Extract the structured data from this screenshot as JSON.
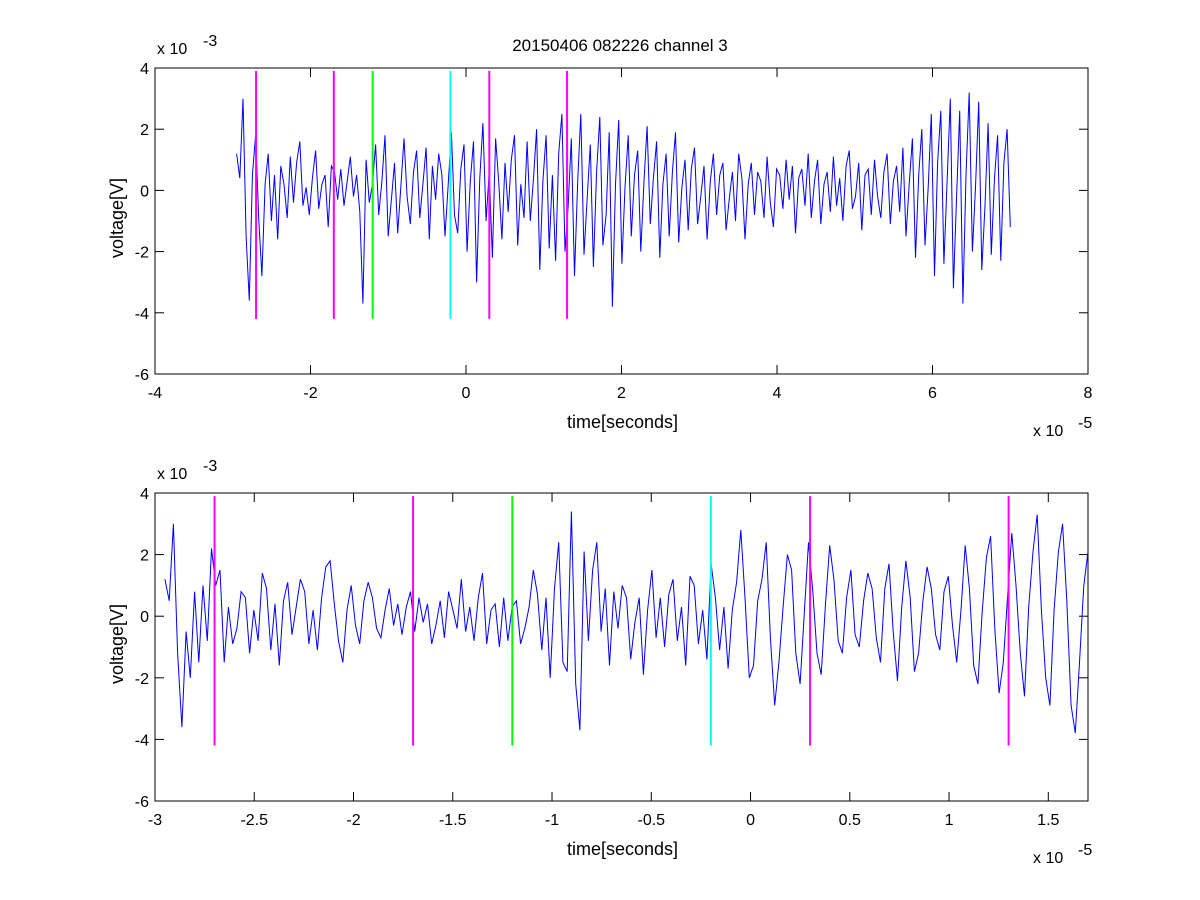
{
  "figure": {
    "title": "20150406 082226 channel 3",
    "background": "#ffffff",
    "trace_color": "#0000ff",
    "marker_colors": {
      "magenta": "#ff00ff",
      "green": "#00ff00",
      "cyan": "#00ffff"
    }
  },
  "chart_data": [
    {
      "type": "line",
      "title": "20150406 082226 channel 3",
      "xlabel": "time[seconds]",
      "ylabel": "voltage[V]",
      "x_exponent_label": "x 10",
      "x_exponent": "-5",
      "y_exponent_label": "x 10",
      "y_exponent": "-3",
      "xlim": [
        -4,
        8
      ],
      "ylim": [
        -6,
        4
      ],
      "xticks": [
        -4,
        -2,
        0,
        2,
        4,
        6,
        8
      ],
      "xtick_labels": [
        "-4",
        "-2",
        "0",
        "2",
        "4",
        "6",
        "8"
      ],
      "yticks": [
        -6,
        -4,
        -2,
        0,
        2,
        4
      ],
      "ytick_labels": [
        "-6",
        "-4",
        "-2",
        "0",
        "2",
        "4"
      ],
      "grid": false,
      "series": [
        {
          "x_start": -2.95,
          "x_end": 7.0,
          "values": [
            1.2,
            0.4,
            3.0,
            -1.5,
            -3.6,
            0.5,
            1.8,
            -0.9,
            -2.8,
            0.2,
            1.2,
            -1.0,
            0.5,
            -1.6,
            0.8,
            0.2,
            -0.9,
            1.1,
            -0.4,
            0.9,
            1.6,
            -0.5,
            0.1,
            -0.8,
            0.4,
            1.3,
            -0.6,
            0.2,
            0.5,
            -1.2,
            0.8,
            0.6,
            -0.3,
            0.7,
            -0.5,
            0.3,
            1.1,
            -0.2,
            0.5,
            -0.7,
            -3.7,
            1.0,
            -0.4,
            0.2,
            1.5,
            -0.8,
            0.3,
            1.8,
            -1.5,
            -0.3,
            0.9,
            -1.4,
            0.1,
            1.7,
            -0.2,
            -1.1,
            0.6,
            1.3,
            -0.9,
            0.2,
            1.4,
            -1.6,
            0.8,
            -0.3,
            1.2,
            0.5,
            -1.5,
            0.2,
            1.9,
            -0.8,
            -1.4,
            0.7,
            1.5,
            -2.0,
            0.3,
            1.6,
            -3.0,
            0.4,
            2.2,
            -1.0,
            0.6,
            -2.2,
            1.7,
            0.3,
            -1.6,
            0.9,
            -0.7,
            1.0,
            1.8,
            -1.8,
            0.2,
            -0.9,
            1.6,
            -1.0,
            0.4,
            2.0,
            -2.6,
            0.3,
            1.8,
            -1.9,
            0.5,
            -2.3,
            1.2,
            2.5,
            -2.0,
            -0.5,
            1.7,
            -2.8,
            0.3,
            2.5,
            -2.1,
            -0.3,
            1.5,
            -2.5,
            0.6,
            2.4,
            -1.8,
            -0.8,
            1.9,
            -3.8,
            0.2,
            2.3,
            -2.4,
            0.1,
            1.8,
            -1.5,
            0.5,
            1.3,
            -2.0,
            0.3,
            2.1,
            -1.1,
            0.4,
            1.6,
            -2.2,
            0.2,
            1.2,
            -1.5,
            0.6,
            1.9,
            -1.7,
            0.1,
            1.0,
            -1.3,
            0.7,
            1.4,
            -1.1,
            -0.2,
            0.8,
            -1.6,
            0.3,
            1.2,
            -0.8,
            0.5,
            0.9,
            -1.3,
            -0.3,
            0.6,
            -1.0,
            1.2,
            0.4,
            -1.6,
            0.2,
            0.9,
            -0.8,
            0.6,
            0.3,
            -0.9,
            1.1,
            -0.4,
            -1.2,
            0.7,
            0.5,
            -0.6,
            1.0,
            -0.3,
            0.8,
            -1.4,
            0.4,
            0.7,
            -0.5,
            1.2,
            -0.9,
            0.3,
            1.0,
            -1.1,
            0.2,
            0.6,
            -0.7,
            1.1,
            -0.5,
            0.4,
            -1.0,
            0.8,
            1.3,
            -0.6,
            -0.2,
            0.9,
            -1.3,
            0.5,
            0.7,
            -0.8,
            1.0,
            -0.2,
            -0.9,
            0.6,
            1.2,
            -1.1,
            0.3,
            0.8,
            -0.7,
            1.4,
            -1.5,
            0.2,
            1.7,
            -2.2,
            0.5,
            2.0,
            -1.8,
            0.1,
            2.5,
            -2.8,
            0.9,
            2.6,
            -2.4,
            0.3,
            3.0,
            -3.2,
            -0.2,
            2.6,
            -3.7,
            0.5,
            3.2,
            -2.0,
            0.1,
            2.9,
            -2.6,
            -0.5,
            2.2,
            -2.1,
            0.4,
            1.8,
            -2.3,
            0.9,
            2.0,
            -1.2
          ]
        }
      ],
      "markers": [
        {
          "x": -2.7,
          "color": "magenta"
        },
        {
          "x": -1.7,
          "color": "magenta"
        },
        {
          "x": -1.2,
          "color": "green"
        },
        {
          "x": -0.2,
          "color": "cyan"
        },
        {
          "x": 0.3,
          "color": "magenta"
        },
        {
          "x": 1.3,
          "color": "magenta"
        }
      ],
      "marker_ylim": [
        -4.2,
        3.9
      ]
    },
    {
      "type": "line",
      "title": "",
      "xlabel": "time[seconds]",
      "ylabel": "voltage[V]",
      "x_exponent_label": "x 10",
      "x_exponent": "-5",
      "y_exponent_label": "x 10",
      "y_exponent": "-3",
      "xlim": [
        -3.0,
        1.7
      ],
      "ylim": [
        -6,
        4
      ],
      "xticks": [
        -3,
        -2.5,
        -2,
        -1.5,
        -1,
        -0.5,
        0,
        0.5,
        1,
        1.5
      ],
      "xtick_labels": [
        "-3",
        "-2.5",
        "-2",
        "-1.5",
        "-1",
        "-0.5",
        "0",
        "0.5",
        "1",
        "1.5"
      ],
      "yticks": [
        -6,
        -4,
        -2,
        0,
        2,
        4
      ],
      "ytick_labels": [
        "-6",
        "-4",
        "-2",
        "0",
        "2",
        "4"
      ],
      "grid": false,
      "series": [
        {
          "x_start": -2.95,
          "x_end": 1.7,
          "values": [
            1.2,
            0.5,
            3.0,
            -1.2,
            -3.6,
            -0.5,
            -2.0,
            0.8,
            -1.5,
            1.0,
            -0.8,
            2.2,
            1.0,
            1.5,
            -1.5,
            0.3,
            -0.9,
            -0.4,
            0.8,
            0.6,
            -1.2,
            0.2,
            -0.8,
            1.4,
            0.9,
            -1.1,
            0.4,
            -1.6,
            0.5,
            1.1,
            -0.6,
            0.3,
            1.2,
            0.8,
            -0.9,
            0.2,
            -1.1,
            0.6,
            1.6,
            1.8,
            0.4,
            -0.8,
            -1.5,
            0.2,
            1.0,
            -0.3,
            -0.9,
            0.5,
            1.1,
            0.6,
            -0.4,
            -0.7,
            0.2,
            0.9,
            -0.3,
            0.4,
            -0.6,
            0.3,
            0.8,
            -0.5,
            0.6,
            -0.2,
            0.4,
            -0.9,
            -0.3,
            0.5,
            -0.7,
            0.8,
            0.2,
            -0.4,
            1.2,
            -0.5,
            0.3,
            -0.8,
            0.6,
            1.4,
            -0.9,
            0.2,
            0.4,
            -1.0,
            0.6,
            -0.8,
            0.3,
            0.5,
            -0.9,
            -0.4,
            0.3,
            1.5,
            0.7,
            -1.1,
            0.6,
            -2.0,
            0.9,
            2.4,
            -1.5,
            -1.8,
            3.4,
            -2.2,
            -3.7,
            2.1,
            -0.8,
            1.5,
            2.4,
            -0.5,
            0.9,
            -1.6,
            0.8,
            -0.4,
            1.0,
            0.6,
            -1.4,
            -0.2,
            0.6,
            -1.9,
            0.2,
            1.5,
            -0.7,
            0.6,
            -1.0,
            0.7,
            1.2,
            -0.8,
            0.3,
            -1.6,
            1.3,
            1.0,
            -0.9,
            0.2,
            -1.4,
            1.7,
            0.6,
            -1.1,
            0.3,
            -1.7,
            0.2,
            1.1,
            2.8,
            0.6,
            -2.0,
            -1.6,
            0.5,
            1.2,
            2.4,
            -0.7,
            -2.9,
            -1.5,
            0.3,
            2.0,
            1.5,
            -1.2,
            -2.2,
            0.1,
            2.4,
            0.8,
            -1.2,
            -1.9,
            0.4,
            2.3,
            1.2,
            -0.8,
            -1.2,
            0.6,
            1.5,
            -0.6,
            -1.0,
            0.5,
            1.4,
            0.9,
            -0.7,
            -1.5,
            0.9,
            1.7,
            -0.5,
            -2.1,
            0.3,
            1.8,
            0.6,
            -1.8,
            -1.2,
            0.5,
            1.6,
            0.9,
            -0.6,
            -1.1,
            0.8,
            1.3,
            -0.3,
            -1.5,
            0.2,
            2.3,
            0.9,
            -1.6,
            -2.2,
            0.1,
            1.9,
            2.6,
            -0.4,
            -2.5,
            -1.5,
            0.6,
            2.7,
            1.0,
            -1.2,
            -2.6,
            0.3,
            2.1,
            3.3,
            0.2,
            -2.0,
            -2.9,
            0.2,
            2.1,
            3.0,
            0.5,
            -2.9,
            -3.8,
            -1.5,
            1.0,
            2.1
          ]
        }
      ],
      "markers": [
        {
          "x": -2.7,
          "color": "magenta"
        },
        {
          "x": -1.7,
          "color": "magenta"
        },
        {
          "x": -1.2,
          "color": "green"
        },
        {
          "x": -0.2,
          "color": "cyan"
        },
        {
          "x": 0.3,
          "color": "magenta"
        },
        {
          "x": 1.3,
          "color": "magenta"
        }
      ],
      "marker_ylim": [
        -4.2,
        3.9
      ]
    }
  ]
}
